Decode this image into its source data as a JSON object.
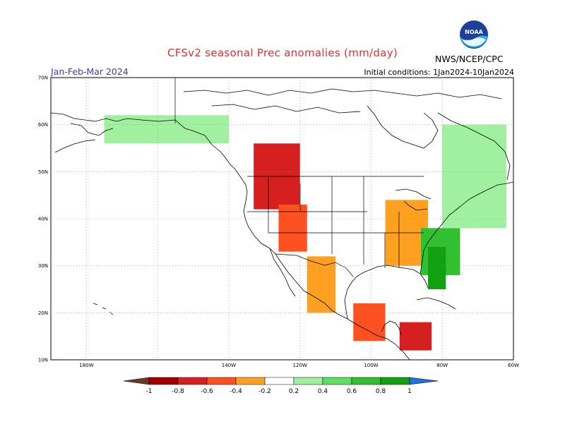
{
  "header": {
    "title": "CFSv2 seasonal Prec anomalies (mm/day)",
    "period": "Jan-Feb-Mar 2024",
    "initial_conditions": "Initial conditions: 1Jan2024-10Jan2024",
    "agency": "NWS/NCEP/CPC",
    "logo_text": "NOAA"
  },
  "map": {
    "lat_range": [
      10,
      70
    ],
    "lon_range": [
      -190,
      -60
    ],
    "lat_labels": [
      "70N",
      "60N",
      "50N",
      "40N",
      "30N",
      "20N",
      "10N"
    ],
    "lon_labels": [
      "180W",
      "140W",
      "120W",
      "100W",
      "80W",
      "60W"
    ],
    "lon_ticks": [
      -180,
      -140,
      -120,
      -100,
      -80,
      -60
    ],
    "grid_lines": true
  },
  "colorbar": {
    "labels": [
      "-1",
      "-0.8",
      "-0.6",
      "-0.4",
      "-0.2",
      "0.2",
      "0.4",
      "0.6",
      "0.8",
      "1"
    ],
    "colors": [
      "#6b3a2a",
      "#a00000",
      "#d62020",
      "#ff5020",
      "#ffa020",
      "#ffffff",
      "#a0f0a0",
      "#60e060",
      "#30c030",
      "#10a010",
      "#2070e0"
    ]
  },
  "chart_data": {
    "type": "heatmap",
    "variable": "Precipitation anomaly",
    "units": "mm/day",
    "legend_levels": [
      -1,
      -0.8,
      -0.6,
      -0.4,
      -0.2,
      0.2,
      0.4,
      0.6,
      0.8,
      1
    ],
    "regions": [
      {
        "lon": [
          -133,
          -120
        ],
        "lat": [
          42,
          56
        ],
        "value": -0.6
      },
      {
        "lon": [
          -126,
          -118
        ],
        "lat": [
          33,
          43
        ],
        "value": -0.5
      },
      {
        "lon": [
          -118,
          -110
        ],
        "lat": [
          20,
          32
        ],
        "value": -0.3
      },
      {
        "lon": [
          -105,
          -96
        ],
        "lat": [
          14,
          22
        ],
        "value": -0.5
      },
      {
        "lon": [
          -92,
          -83
        ],
        "lat": [
          12,
          18
        ],
        "value": -0.7
      },
      {
        "lon": [
          -96,
          -84
        ],
        "lat": [
          30,
          44
        ],
        "value": -0.3
      },
      {
        "lon": [
          -86,
          -75
        ],
        "lat": [
          28,
          38
        ],
        "value": 0.7
      },
      {
        "lon": [
          -84,
          -79
        ],
        "lat": [
          25,
          34
        ],
        "value": 1.0
      },
      {
        "lon": [
          -80,
          -62
        ],
        "lat": [
          38,
          60
        ],
        "value": 0.3
      },
      {
        "lon": [
          -175,
          -140
        ],
        "lat": [
          56,
          62
        ],
        "value": 0.3
      }
    ]
  }
}
